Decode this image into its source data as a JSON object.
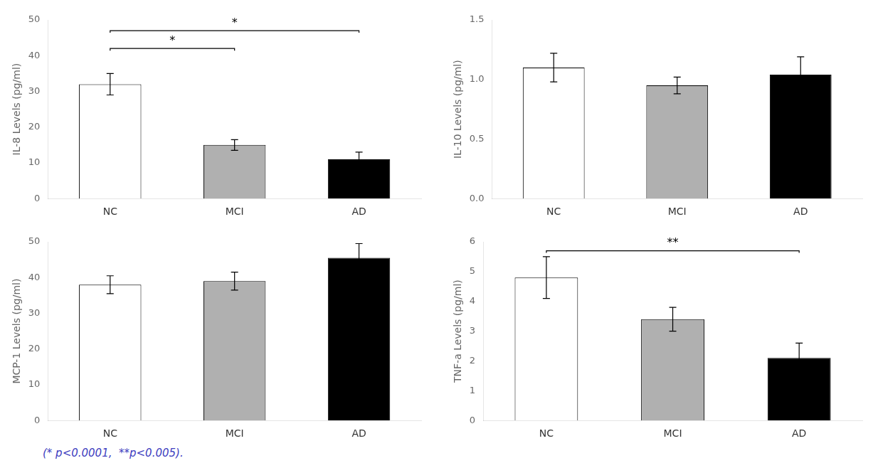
{
  "chart_data": [
    {
      "type": "bar",
      "categories": [
        "NC",
        "MCI",
        "AD"
      ],
      "values": [
        32.0,
        15.0,
        11.0
      ],
      "errors": [
        3.0,
        1.5,
        2.0
      ],
      "colors": [
        "white",
        "#b0b0b0",
        "black"
      ],
      "ylabel": "IL-8 Levels (pg/ml)",
      "ylim": [
        0,
        50
      ],
      "yticks": [
        0,
        10,
        20,
        30,
        40,
        50
      ],
      "grid": false,
      "annotations": [
        {
          "type": "bracket",
          "from": "NC",
          "to": "MCI",
          "y": 42,
          "text": "*"
        },
        {
          "type": "bracket",
          "from": "NC",
          "to": "AD",
          "y": 47,
          "text": "*"
        }
      ]
    },
    {
      "type": "bar",
      "categories": [
        "NC",
        "MCI",
        "AD"
      ],
      "values": [
        1.1,
        0.95,
        1.04
      ],
      "errors": [
        0.12,
        0.07,
        0.15
      ],
      "colors": [
        "white",
        "#b0b0b0",
        "black"
      ],
      "ylabel": "IL-10 Levels (pg/ml)",
      "ylim": [
        0.0,
        1.5
      ],
      "yticks": [
        {
          "value": 0.0,
          "label": "0.0"
        },
        0.5,
        {
          "value": 1.0,
          "label": "1.0"
        },
        1.5
      ],
      "grid": false
    },
    {
      "type": "bar",
      "categories": [
        "NC",
        "MCI",
        "AD"
      ],
      "values": [
        38.0,
        39.0,
        45.5
      ],
      "errors": [
        2.5,
        2.5,
        4.0
      ],
      "colors": [
        "white",
        "#b0b0b0",
        "black"
      ],
      "ylabel": "MCP-1 Levels (pg/ml)",
      "ylim": [
        0,
        50
      ],
      "yticks": [
        0,
        10,
        20,
        30,
        40,
        50
      ],
      "grid": false,
      "annotations": [
        {
          "type": "footnote",
          "text": "(* p<0.0001,  **p<0.005).",
          "color": "#4040c0"
        }
      ]
    },
    {
      "type": "bar",
      "categories": [
        "NC",
        "MCI",
        "AD"
      ],
      "values": [
        4.8,
        3.4,
        2.1
      ],
      "errors": [
        0.7,
        0.4,
        0.5
      ],
      "colors": [
        "white",
        "#b0b0b0",
        "black"
      ],
      "ylabel": "TNF-a Levels (pg/ml)",
      "ylim": [
        0,
        6
      ],
      "yticks": [
        0,
        1,
        2,
        3,
        4,
        5,
        6
      ],
      "grid": false,
      "annotations": [
        {
          "type": "bracket",
          "from": "NC",
          "to": "AD",
          "y": 5.7,
          "text": "**"
        }
      ]
    }
  ]
}
